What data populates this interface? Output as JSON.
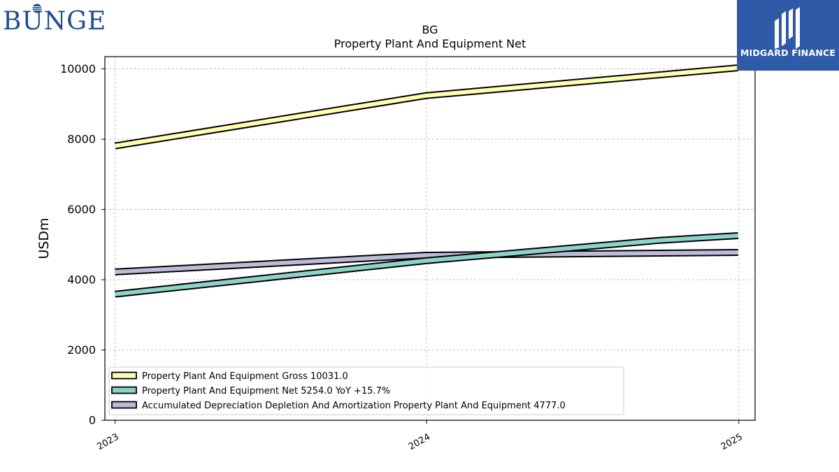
{
  "brand": {
    "left_logo": "BUNGE",
    "right_logo": "MIDGARD FINANCE"
  },
  "chart_data": {
    "type": "line",
    "title": "BG",
    "subtitle": "Property Plant And Equipment Net",
    "xlabel": "",
    "ylabel": "USDm",
    "x": [
      "2023-01-01",
      "2023-12-31",
      "2024-09-30",
      "2024-12-31"
    ],
    "x_ticks": [
      "2023",
      "2024",
      "2025"
    ],
    "ylim": [
      0,
      10350
    ],
    "y_ticks": [
      0,
      2000,
      4000,
      6000,
      8000,
      10000
    ],
    "grid": true,
    "legend_position": "lower-left",
    "series": [
      {
        "name": "Property Plant And Equipment Gross  10031.0",
        "color": "#ffffb3",
        "values": [
          7809,
          9239,
          null,
          10031
        ]
      },
      {
        "name": "Property Plant And Equipment Net  5254.0 YoY +15.7%",
        "color": "#8dd3c7",
        "values": [
          3588,
          4541,
          5122,
          5254
        ]
      },
      {
        "name": "Accumulated Depreciation Depletion And Amortization Property Plant And Equipment  4777.0",
        "color": "#bebada",
        "values": [
          4221,
          4698,
          null,
          4777
        ]
      }
    ]
  }
}
